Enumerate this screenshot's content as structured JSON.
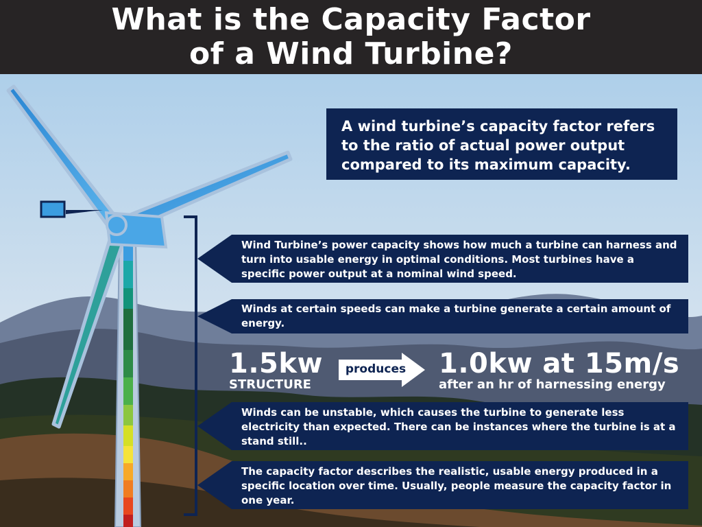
{
  "title": {
    "line1": "What is the Capacity Factor",
    "line2": "of a Wind Turbine?"
  },
  "definition": "A wind turbine’s capacity factor refers to the ratio of actual power output compared to its maximum capacity.",
  "callouts": [
    {
      "text": "Wind Turbine’s power capacity shows how much a turbine can harness and turn into usable energy in optimal conditions. Most turbines have a specific power output at a nominal wind speed."
    },
    {
      "text": "Winds at certain speeds can make a turbine generate a certain amount of energy."
    },
    {
      "text": "Winds can be unstable, which causes the turbine to generate less electricity than expected. There can be instances where the turbine is at a stand still.."
    },
    {
      "text": "The capacity factor describes the realistic, usable energy produced in a specific location over time. Usually, people measure the capacity factor in one year."
    }
  ],
  "example": {
    "capacity_value": "1.5kw",
    "capacity_label": "STRUCTURE",
    "arrow_label": "produces",
    "output_value": "1.0kw at 15m/s",
    "output_label": "after an hr of harnessing energy"
  },
  "colors": {
    "title_bg": "#272425",
    "box_navy": "#0e2452",
    "turbine_blue": "#3b9de0",
    "sky_top": "#b9d7ee",
    "sky_bottom": "#dde6ee"
  },
  "icons": {
    "turbine": "wind-turbine-illustration",
    "bracket": "bracket-line",
    "arrow": "right-arrow-icon"
  }
}
